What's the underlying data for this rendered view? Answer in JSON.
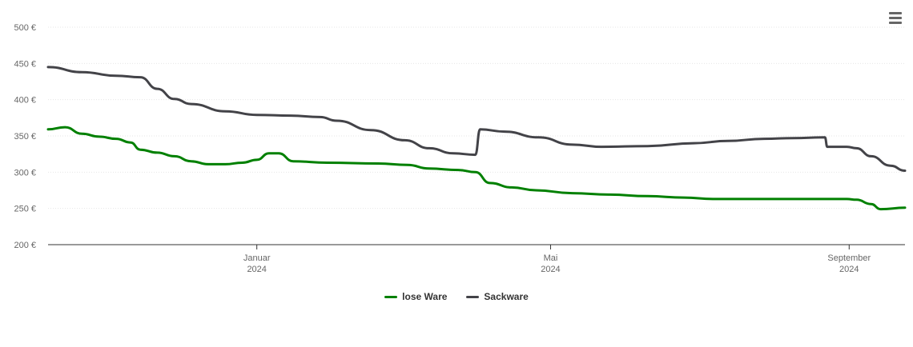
{
  "chart_data": {
    "type": "line",
    "y_ticks": [
      "200 €",
      "250 €",
      "300 €",
      "350 €",
      "400 €",
      "450 €",
      "500 €"
    ],
    "ylim": [
      200,
      500
    ],
    "grid": true,
    "x_ticks": [
      {
        "month": "Januar",
        "year": "2024",
        "date": "2024-01-01"
      },
      {
        "month": "Mai",
        "year": "2024",
        "date": "2024-05-01"
      },
      {
        "month": "September",
        "year": "2024",
        "date": "2024-09-01"
      }
    ],
    "xlim": [
      "2023-10-07",
      "2024-09-24"
    ],
    "legend_position": "bottom-center",
    "series": [
      {
        "name": "lose Ware",
        "color": "#008000",
        "points": [
          [
            "2023-10-07",
            359
          ],
          [
            "2023-10-14",
            362
          ],
          [
            "2023-10-21",
            353
          ],
          [
            "2023-10-28",
            349
          ],
          [
            "2023-11-04",
            346
          ],
          [
            "2023-11-10",
            341
          ],
          [
            "2023-11-14",
            331
          ],
          [
            "2023-11-21",
            327
          ],
          [
            "2023-11-28",
            322
          ],
          [
            "2023-12-05",
            315
          ],
          [
            "2023-12-12",
            311
          ],
          [
            "2023-12-19",
            311
          ],
          [
            "2023-12-26",
            313
          ],
          [
            "2024-01-01",
            317
          ],
          [
            "2024-01-06",
            326
          ],
          [
            "2024-01-10",
            326
          ],
          [
            "2024-01-16",
            315
          ],
          [
            "2024-01-30",
            313
          ],
          [
            "2024-02-20",
            312
          ],
          [
            "2024-03-03",
            310
          ],
          [
            "2024-03-12",
            305
          ],
          [
            "2024-03-24",
            303
          ],
          [
            "2024-03-31",
            300
          ],
          [
            "2024-04-06",
            285
          ],
          [
            "2024-04-15",
            279
          ],
          [
            "2024-04-25",
            275
          ],
          [
            "2024-05-10",
            271
          ],
          [
            "2024-05-25",
            269
          ],
          [
            "2024-06-10",
            267
          ],
          [
            "2024-06-25",
            265
          ],
          [
            "2024-07-07",
            263
          ],
          [
            "2024-07-31",
            263
          ],
          [
            "2024-08-31",
            263
          ],
          [
            "2024-09-04",
            262
          ],
          [
            "2024-09-10",
            256
          ],
          [
            "2024-09-14",
            249
          ],
          [
            "2024-09-24",
            251
          ]
        ]
      },
      {
        "name": "Sackware",
        "color": "#434348",
        "points": [
          [
            "2023-10-07",
            445
          ],
          [
            "2023-10-21",
            438
          ],
          [
            "2023-11-04",
            433
          ],
          [
            "2023-11-14",
            431
          ],
          [
            "2023-11-21",
            415
          ],
          [
            "2023-11-28",
            401
          ],
          [
            "2023-12-05",
            394
          ],
          [
            "2023-12-19",
            384
          ],
          [
            "2024-01-01",
            379
          ],
          [
            "2024-01-15",
            378
          ],
          [
            "2024-01-27",
            376
          ],
          [
            "2024-02-03",
            371
          ],
          [
            "2024-02-17",
            358
          ],
          [
            "2024-03-02",
            344
          ],
          [
            "2024-03-12",
            333
          ],
          [
            "2024-03-22",
            326
          ],
          [
            "2024-03-31",
            324
          ],
          [
            "2024-04-02",
            359
          ],
          [
            "2024-04-12",
            356
          ],
          [
            "2024-04-26",
            348
          ],
          [
            "2024-05-10",
            338
          ],
          [
            "2024-05-22",
            335
          ],
          [
            "2024-06-10",
            336
          ],
          [
            "2024-06-29",
            340
          ],
          [
            "2024-07-13",
            343
          ],
          [
            "2024-07-28",
            346
          ],
          [
            "2024-08-09",
            347
          ],
          [
            "2024-08-22",
            348
          ],
          [
            "2024-08-23",
            335
          ],
          [
            "2024-08-31",
            335
          ],
          [
            "2024-09-04",
            333
          ],
          [
            "2024-09-10",
            322
          ],
          [
            "2024-09-18",
            309
          ],
          [
            "2024-09-24",
            302
          ]
        ]
      }
    ]
  },
  "icons": {
    "menu": "hamburger-menu-icon"
  }
}
